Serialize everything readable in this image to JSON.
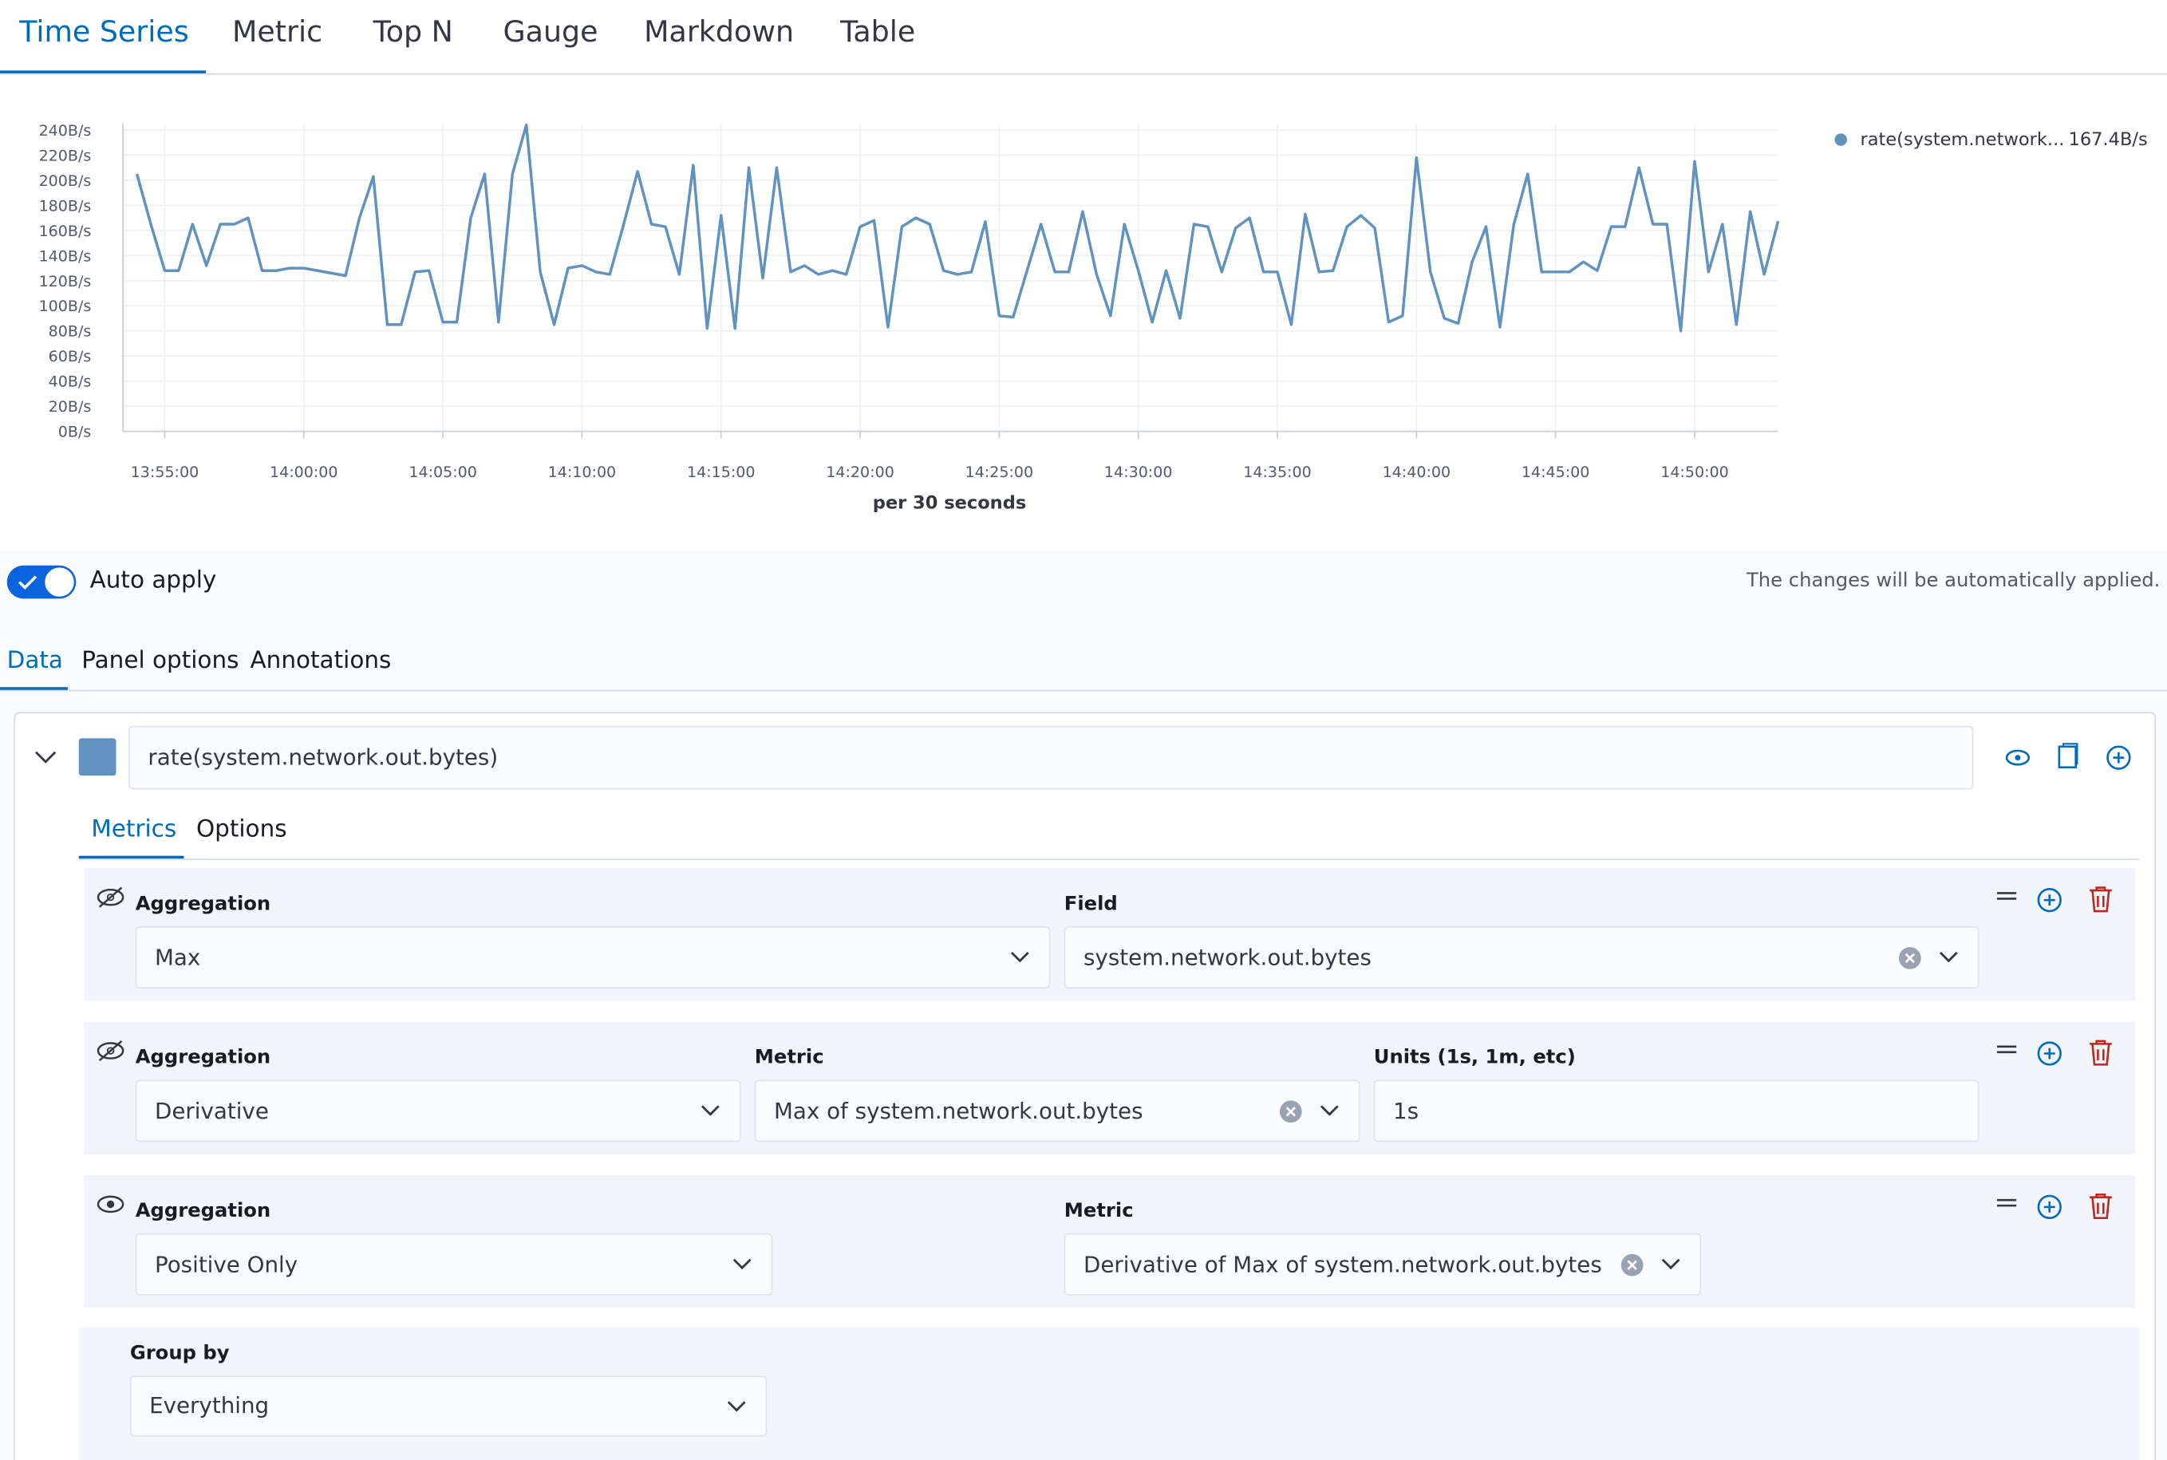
{
  "tabs": [
    "Time Series",
    "Metric",
    "Top N",
    "Gauge",
    "Markdown",
    "Table"
  ],
  "chart_data": {
    "type": "line",
    "x_label": "per 30 seconds",
    "x": [
      "13:54:00",
      "13:54:30",
      "13:55:00",
      "13:55:30",
      "13:56:00",
      "13:56:30",
      "13:57:00",
      "13:57:30",
      "13:58:00",
      "13:58:30",
      "13:59:00",
      "13:59:30",
      "14:00:00",
      "14:00:30",
      "14:01:00",
      "14:01:30",
      "14:02:00",
      "14:02:30",
      "14:03:00",
      "14:03:30",
      "14:04:00",
      "14:04:30",
      "14:05:00",
      "14:05:30",
      "14:06:00",
      "14:06:30",
      "14:07:00",
      "14:07:30",
      "14:08:00",
      "14:08:30",
      "14:09:00",
      "14:09:30",
      "14:10:00",
      "14:10:30",
      "14:11:00",
      "14:11:30",
      "14:12:00",
      "14:12:30",
      "14:13:00",
      "14:13:30",
      "14:14:00",
      "14:14:30",
      "14:15:00",
      "14:15:30",
      "14:16:00",
      "14:16:30",
      "14:17:00",
      "14:17:30",
      "14:18:00",
      "14:18:30",
      "14:19:00",
      "14:19:30",
      "14:20:00",
      "14:20:30",
      "14:21:00",
      "14:21:30",
      "14:22:00",
      "14:22:30",
      "14:23:00",
      "14:23:30",
      "14:24:00",
      "14:24:30",
      "14:25:00",
      "14:25:30",
      "14:26:00",
      "14:26:30",
      "14:27:00",
      "14:27:30",
      "14:28:00",
      "14:28:30",
      "14:29:00",
      "14:29:30",
      "14:30:00",
      "14:30:30",
      "14:31:00",
      "14:31:30",
      "14:32:00",
      "14:32:30",
      "14:33:00",
      "14:33:30",
      "14:34:00",
      "14:34:30",
      "14:35:00",
      "14:35:30",
      "14:36:00",
      "14:36:30",
      "14:37:00",
      "14:37:30",
      "14:38:00",
      "14:38:30",
      "14:39:00",
      "14:39:30",
      "14:40:00",
      "14:40:30",
      "14:41:00",
      "14:41:30",
      "14:42:00",
      "14:42:30",
      "14:43:00",
      "14:43:30",
      "14:44:00",
      "14:44:30",
      "14:45:00",
      "14:45:30",
      "14:46:00",
      "14:46:30",
      "14:47:00",
      "14:47:30",
      "14:48:00",
      "14:48:30",
      "14:49:00",
      "14:49:30",
      "14:50:00",
      "14:50:30",
      "14:51:00",
      "14:51:30",
      "14:52:00",
      "14:52:30",
      "14:53:00"
    ],
    "series": [
      {
        "name": "rate(system.network...",
        "color": "#6092c0",
        "legend_value": "167.4B/s",
        "values": [
          205,
          165,
          128,
          128,
          165,
          132,
          165,
          165,
          170,
          128,
          128,
          130,
          130,
          128,
          126,
          124,
          170,
          203,
          85,
          85,
          127,
          128,
          87,
          87,
          170,
          205,
          87,
          205,
          244,
          127,
          85,
          130,
          132,
          127,
          125,
          165,
          207,
          165,
          163,
          125,
          212,
          82,
          172,
          82,
          210,
          122,
          210,
          127,
          132,
          125,
          128,
          125,
          163,
          168,
          83,
          163,
          170,
          165,
          128,
          125,
          127,
          167,
          92,
          91,
          128,
          165,
          127,
          127,
          175,
          125,
          92,
          165,
          128,
          87,
          128,
          90,
          165,
          163,
          127,
          162,
          170,
          127,
          127,
          85,
          173,
          127,
          128,
          163,
          172,
          162,
          87,
          92,
          218,
          127,
          90,
          86,
          135,
          163,
          83,
          165,
          205,
          127,
          127,
          127,
          135,
          128,
          163,
          163,
          210,
          165,
          165,
          80,
          215,
          127,
          165,
          85,
          175,
          125,
          167.4
        ]
      }
    ],
    "xlim": [
      "13:53:30",
      "14:53:00"
    ],
    "xticks": [
      "13:55:00",
      "14:00:00",
      "14:05:00",
      "14:10:00",
      "14:15:00",
      "14:20:00",
      "14:25:00",
      "14:30:00",
      "14:35:00",
      "14:40:00",
      "14:45:00",
      "14:50:00"
    ],
    "ylim": [
      0,
      245
    ],
    "yticks": [
      {
        "value": 0,
        "label": "0B/s"
      },
      {
        "value": 20,
        "label": "20B/s"
      },
      {
        "value": 40,
        "label": "40B/s"
      },
      {
        "value": 60,
        "label": "60B/s"
      },
      {
        "value": 80,
        "label": "80B/s"
      },
      {
        "value": 100,
        "label": "100B/s"
      },
      {
        "value": 120,
        "label": "120B/s"
      },
      {
        "value": 140,
        "label": "140B/s"
      },
      {
        "value": 160,
        "label": "160B/s"
      },
      {
        "value": 180,
        "label": "180B/s"
      },
      {
        "value": 200,
        "label": "200B/s"
      },
      {
        "value": 220,
        "label": "220B/s"
      },
      {
        "value": 240,
        "label": "240B/s"
      }
    ],
    "grid": true,
    "legend": "top-right"
  },
  "auto_apply": "Auto apply",
  "notice": "The changes will be automatically applied.",
  "editor_tabs": [
    "Data",
    "Panel options",
    "Annotations"
  ],
  "series_label": "rate(system.network.out.bytes)",
  "metric_tabs": [
    "Metrics",
    "Options"
  ],
  "metrics": [
    {
      "fields": [
        {
          "label": "Aggregation",
          "value": "Max"
        },
        {
          "label": "Field",
          "value": "system.network.out.bytes"
        }
      ]
    },
    {
      "fields": [
        {
          "label": "Aggregation",
          "value": "Derivative"
        },
        {
          "label": "Metric",
          "value": "Max of system.network.out.bytes"
        },
        {
          "label": "Units (1s, 1m, etc)",
          "value": "1s"
        }
      ]
    },
    {
      "fields": [
        {
          "label": "Aggregation",
          "value": "Positive Only"
        },
        {
          "label": "Metric",
          "value": "Derivative of Max of system.network.out.bytes"
        }
      ]
    }
  ],
  "group_by": {
    "label": "Group by",
    "value": "Everything"
  }
}
